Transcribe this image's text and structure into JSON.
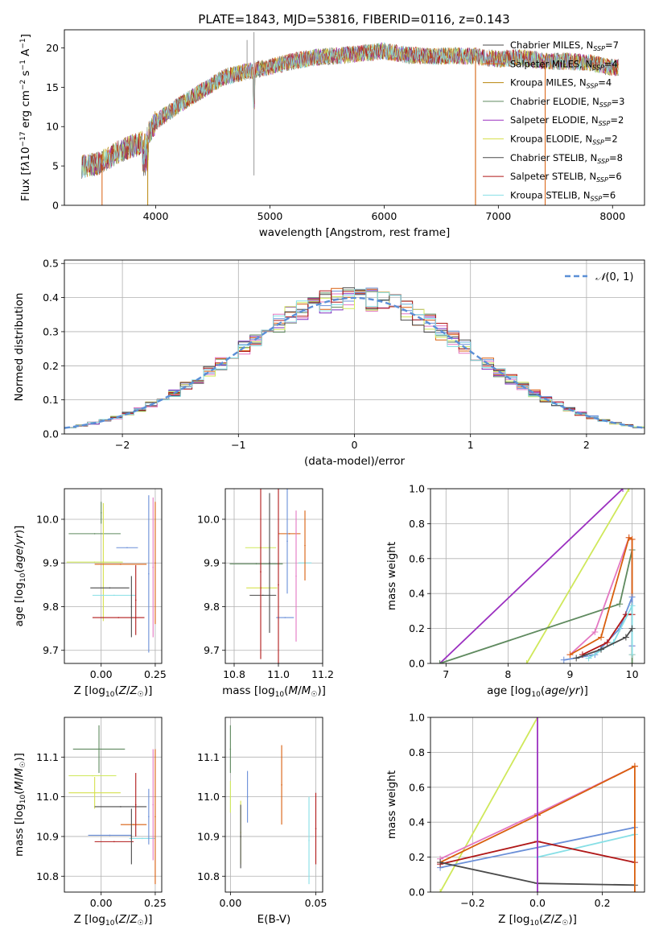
{
  "page_title": "PLATE=1843, MJD=53816, FIBERID=0116, z=0.143",
  "colors": [
    "#5f8a5f",
    "#7e2fbf",
    "#d95f0e",
    "#6a8fd8",
    "#9a9a9a",
    "#e377c2",
    "#cfe85a",
    "#4a4a4a",
    "#b01818",
    "#87dfe6"
  ],
  "chart_data": [
    {
      "type": "line",
      "id": "spectrum",
      "title": "PLATE=1843, MJD=53816, FIBERID=0116, z=0.143",
      "xlabel": "wavelength [Angstrom, rest frame]",
      "ylabel": "Flux [f_λ 10^-17 erg cm^-2 s^-1 A^-1]",
      "xlim": [
        3200,
        8280
      ],
      "ylim": [
        0,
        22.3
      ],
      "xticks": [
        4000,
        5000,
        6000,
        7000,
        8000
      ],
      "yticks": [
        0,
        5,
        10,
        15,
        20
      ],
      "grid": false,
      "legend_position": "top-right",
      "series": [
        {
          "name": "Chabrier MILES, N_SSP=7"
        },
        {
          "name": "Salpeter MILES, N_SSP=4"
        },
        {
          "name": "Kroupa MILES, N_SSP=4"
        },
        {
          "name": "Chabrier ELODIE, N_SSP=3"
        },
        {
          "name": "Salpeter ELODIE, N_SSP=2"
        },
        {
          "name": "Kroupa ELODIE, N_SSP=2"
        },
        {
          "name": "Chabrier STELIB, N_SSP=8"
        },
        {
          "name": "Salpeter STELIB, N_SSP=6"
        },
        {
          "name": "Kroupa STELIB, N_SSP=6"
        }
      ],
      "x": [
        3350,
        3500,
        3700,
        3900,
        4000,
        4200,
        4400,
        4600,
        4800,
        5000,
        5200,
        5400,
        5600,
        5800,
        6000,
        6200,
        6400,
        6600,
        6800,
        7000,
        7200,
        7400,
        7600,
        7800,
        8000
      ],
      "y": [
        4.9,
        5.3,
        7.0,
        8.1,
        10.6,
        12.7,
        14.5,
        16.3,
        17.0,
        17.6,
        18.3,
        18.8,
        19.0,
        19.3,
        19.6,
        19.1,
        18.9,
        19.0,
        18.9,
        18.6,
        18.8,
        18.3,
        18.3,
        18.1,
        17.5
      ]
    },
    {
      "type": "bar",
      "id": "residual_hist",
      "xlabel": "(data-model)/error",
      "ylabel": "Normed distribution",
      "xlim": [
        -2.5,
        2.5
      ],
      "ylim": [
        0,
        0.51
      ],
      "xticks": [
        -2,
        -1,
        0,
        1,
        2
      ],
      "yticks": [
        0.0,
        0.1,
        0.2,
        0.3,
        0.4,
        0.5
      ],
      "grid": true,
      "legend_position": "top-right",
      "legend": "N(0,1)",
      "bin_width": 0.1
    },
    {
      "type": "scatter",
      "id": "age_vs_Z",
      "xlabel": "Z [log10(Z/Z☉)]",
      "ylabel": "age  [log10(age/yr)]",
      "xlim": [
        -0.17,
        0.28
      ],
      "ylim": [
        9.67,
        10.07
      ],
      "xticks": [
        0.0,
        0.25
      ],
      "xticklabels": [
        "0.00",
        "0.25"
      ],
      "yticks": [
        9.7,
        9.8,
        9.9,
        10.0
      ],
      "grid": true,
      "points": [
        {
          "x": -0.03,
          "y": 9.967,
          "xerr": 0.12,
          "yerr": 0.0
        },
        {
          "x": -0.03,
          "y": 9.902,
          "xerr": 0.13,
          "yerr": 0.0
        },
        {
          "x": 0.01,
          "y": 9.902,
          "xerr": 0.0,
          "yerr": 0.135
        },
        {
          "x": 0.04,
          "y": 9.843,
          "xerr": 0.09,
          "yerr": 0.0
        },
        {
          "x": 0.12,
          "y": 9.935,
          "xerr": 0.05,
          "yerr": 0.0
        },
        {
          "x": 0.09,
          "y": 9.897,
          "xerr": 0.12,
          "yerr": 0.0
        },
        {
          "x": 0.06,
          "y": 9.826,
          "xerr": 0.1,
          "yerr": 0.0
        },
        {
          "x": 0.08,
          "y": 9.775,
          "xerr": 0.12,
          "yerr": 0.0
        },
        {
          "x": 0.14,
          "y": 9.8,
          "xerr": 0.0,
          "yerr": 0.07
        },
        {
          "x": 0.16,
          "y": 9.815,
          "xerr": 0.0,
          "yerr": 0.08
        },
        {
          "x": 0.22,
          "y": 9.875,
          "xerr": 0.0,
          "yerr": 0.18
        },
        {
          "x": 0.24,
          "y": 9.89,
          "xerr": 0.0,
          "yerr": 0.16
        },
        {
          "x": 0.25,
          "y": 9.9,
          "xerr": 0.0,
          "yerr": 0.14
        },
        {
          "x": 0.0,
          "y": 10.015,
          "xerr": 0.0,
          "yerr": 0.025
        }
      ]
    },
    {
      "type": "scatter",
      "id": "age_vs_mass",
      "xlabel": "mass [log10(M/M☉)]",
      "ylabel": "",
      "xlim": [
        10.76,
        11.2
      ],
      "ylim": [
        9.67,
        10.07
      ],
      "xticks": [
        10.8,
        11.0,
        11.2
      ],
      "xticklabels": [
        "10.8",
        "11.0",
        "11.2"
      ],
      "yticks": [
        9.7,
        9.8,
        9.9,
        10.0
      ],
      "grid": true,
      "points": [
        {
          "x": 10.9,
          "y": 9.898,
          "xerr": 0.12,
          "yerr": 0.0
        },
        {
          "x": 10.92,
          "y": 9.935,
          "xerr": 0.07,
          "yerr": 0.0
        },
        {
          "x": 10.925,
          "y": 9.843,
          "xerr": 0.07,
          "yerr": 0.0
        },
        {
          "x": 10.93,
          "y": 9.826,
          "xerr": 0.06,
          "yerr": 0.0
        },
        {
          "x": 11.03,
          "y": 9.775,
          "xerr": 0.04,
          "yerr": 0.0
        },
        {
          "x": 11.05,
          "y": 9.967,
          "xerr": 0.05,
          "yerr": 0.0
        },
        {
          "x": 11.12,
          "y": 9.9,
          "xerr": 0.03,
          "yerr": 0.0
        },
        {
          "x": 10.92,
          "y": 9.88,
          "xerr": 0.0,
          "yerr": 0.2
        },
        {
          "x": 10.96,
          "y": 9.9,
          "xerr": 0.0,
          "yerr": 0.16
        },
        {
          "x": 11.0,
          "y": 9.85,
          "xerr": 0.0,
          "yerr": 0.22
        },
        {
          "x": 11.04,
          "y": 9.95,
          "xerr": 0.0,
          "yerr": 0.12
        },
        {
          "x": 11.08,
          "y": 9.87,
          "xerr": 0.0,
          "yerr": 0.15
        },
        {
          "x": 11.12,
          "y": 9.94,
          "xerr": 0.0,
          "yerr": 0.08
        }
      ]
    },
    {
      "type": "line",
      "id": "mass_weight_vs_age",
      "xlabel": "age  [log10(age/yr)]",
      "ylabel": "mass weight",
      "xlim": [
        6.75,
        10.2
      ],
      "ylim": [
        0,
        1.0
      ],
      "xticks": [
        7,
        8,
        9,
        10
      ],
      "yticks": [
        0.0,
        0.2,
        0.4,
        0.6,
        0.8,
        1.0
      ],
      "grid": true,
      "series": [
        {
          "x": [
            6.9,
            9.85
          ],
          "y": [
            0.0,
            1.0
          ]
        },
        {
          "x": [
            8.3,
            9.95
          ],
          "y": [
            0.0,
            1.0
          ]
        },
        {
          "x": [
            6.9,
            9.8,
            10.0,
            10.0
          ],
          "y": [
            0.0,
            0.34,
            0.65,
            0.0
          ]
        },
        {
          "x": [
            9.0,
            9.4,
            9.95,
            10.0,
            10.0
          ],
          "y": [
            0.05,
            0.18,
            0.72,
            0.71,
            0.1
          ]
        },
        {
          "x": [
            9.0,
            9.5,
            9.95,
            10.0,
            10.0
          ],
          "y": [
            0.05,
            0.15,
            0.72,
            0.71,
            0.05
          ]
        },
        {
          "x": [
            8.9,
            9.4,
            9.8,
            10.0,
            10.0
          ],
          "y": [
            0.02,
            0.05,
            0.2,
            0.38,
            0.1
          ]
        },
        {
          "x": [
            9.2,
            9.6,
            9.9,
            10.0
          ],
          "y": [
            0.05,
            0.12,
            0.28,
            0.28
          ]
        },
        {
          "x": [
            9.3,
            9.7,
            10.0,
            10.0
          ],
          "y": [
            0.03,
            0.12,
            0.33,
            0.05
          ]
        },
        {
          "x": [
            9.1,
            9.5,
            9.9,
            10.0
          ],
          "y": [
            0.03,
            0.08,
            0.15,
            0.2
          ]
        }
      ]
    },
    {
      "type": "scatter",
      "id": "mass_vs_Z",
      "xlabel": "Z [log10(Z/Z☉)]",
      "ylabel": "mass [log10(M/M☉)]",
      "xlim": [
        -0.17,
        0.28
      ],
      "ylim": [
        10.76,
        11.2
      ],
      "xticks": [
        0.0,
        0.25
      ],
      "xticklabels": [
        "0.00",
        "0.25"
      ],
      "yticks": [
        10.8,
        10.9,
        11.0,
        11.1
      ],
      "grid": true,
      "points": [
        {
          "x": -0.01,
          "y": 11.12,
          "xerr": 0.12,
          "yerr": 0.06
        },
        {
          "x": -0.04,
          "y": 11.053,
          "xerr": 0.11,
          "yerr": 0.0
        },
        {
          "x": -0.03,
          "y": 11.01,
          "xerr": 0.12,
          "yerr": 0.04
        },
        {
          "x": 0.09,
          "y": 10.975,
          "xerr": 0.12,
          "yerr": 0.0
        },
        {
          "x": 0.04,
          "y": 10.903,
          "xerr": 0.1,
          "yerr": 0.0
        },
        {
          "x": 0.15,
          "y": 10.93,
          "xerr": 0.06,
          "yerr": 0.0
        },
        {
          "x": 0.19,
          "y": 10.895,
          "xerr": 0.06,
          "yerr": 0.0
        },
        {
          "x": 0.06,
          "y": 10.887,
          "xerr": 0.09,
          "yerr": 0.0
        },
        {
          "x": 0.14,
          "y": 10.9,
          "xerr": 0.0,
          "yerr": 0.07
        },
        {
          "x": 0.16,
          "y": 10.98,
          "xerr": 0.0,
          "yerr": 0.08
        },
        {
          "x": 0.22,
          "y": 10.95,
          "xerr": 0.0,
          "yerr": 0.07
        },
        {
          "x": 0.24,
          "y": 10.98,
          "xerr": 0.0,
          "yerr": 0.14
        },
        {
          "x": 0.25,
          "y": 10.95,
          "xerr": 0.0,
          "yerr": 0.17
        }
      ]
    },
    {
      "type": "scatter",
      "id": "mass_vs_ebv",
      "xlabel": "E(B-V)",
      "ylabel": "",
      "xlim": [
        -0.003,
        0.054
      ],
      "ylim": [
        10.76,
        11.2
      ],
      "xticks": [
        0.0,
        0.05
      ],
      "xticklabels": [
        "0.00",
        "0.05"
      ],
      "yticks": [
        10.8,
        10.9,
        11.0,
        11.1
      ],
      "grid": true,
      "points": [
        {
          "x": 0.0,
          "y": 11.12,
          "xerr": 0.0,
          "yerr": 0.06
        },
        {
          "x": 0.0,
          "y": 11.0,
          "xerr": 0.0,
          "yerr": 0.04
        },
        {
          "x": 0.006,
          "y": 10.91,
          "xerr": 0.0,
          "yerr": 0.08
        },
        {
          "x": 0.006,
          "y": 10.9,
          "xerr": 0.0,
          "yerr": 0.08
        },
        {
          "x": 0.01,
          "y": 11.0,
          "xerr": 0.0,
          "yerr": 0.065
        },
        {
          "x": 0.03,
          "y": 11.03,
          "xerr": 0.0,
          "yerr": 0.1
        },
        {
          "x": 0.046,
          "y": 10.89,
          "xerr": 0.0,
          "yerr": 0.11
        },
        {
          "x": 0.05,
          "y": 10.92,
          "xerr": 0.0,
          "yerr": 0.09
        }
      ]
    },
    {
      "type": "line",
      "id": "mass_weight_vs_Z",
      "xlabel": "Z [log10(Z/Z☉)]",
      "ylabel": "mass weight",
      "xlim": [
        -0.33,
        0.33
      ],
      "ylim": [
        0,
        1.0
      ],
      "xticks": [
        -0.2,
        0.0,
        0.2
      ],
      "xticklabels": [
        "−0.2",
        "0.0",
        "0.2"
      ],
      "yticks": [
        0.0,
        0.2,
        0.4,
        0.6,
        0.8,
        1.0
      ],
      "grid": true,
      "series": [
        {
          "x": [
            -0.3,
            0.0
          ],
          "y": [
            0.0,
            1.0
          ]
        },
        {
          "x": [
            -0.3,
            0.0,
            0.3
          ],
          "y": [
            0.19,
            0.45,
            0.72
          ]
        },
        {
          "x": [
            -0.3,
            0.0,
            0.3
          ],
          "y": [
            0.17,
            0.44,
            0.72
          ]
        },
        {
          "x": [
            -0.3,
            0.3
          ],
          "y": [
            0.14,
            0.37
          ]
        },
        {
          "x": [
            0.0,
            0.3
          ],
          "y": [
            0.2,
            0.33
          ]
        },
        {
          "x": [
            -0.3,
            0.0,
            0.3
          ],
          "y": [
            0.16,
            0.29,
            0.17
          ]
        },
        {
          "x": [
            -0.3,
            0.0,
            0.3
          ],
          "y": [
            0.17,
            0.05,
            0.04
          ]
        },
        {
          "x": [
            0.0,
            0.0
          ],
          "y": [
            0.0,
            1.0
          ]
        },
        {
          "x": [
            0.3,
            0.3
          ],
          "y": [
            0.0,
            0.72
          ]
        }
      ]
    }
  ]
}
